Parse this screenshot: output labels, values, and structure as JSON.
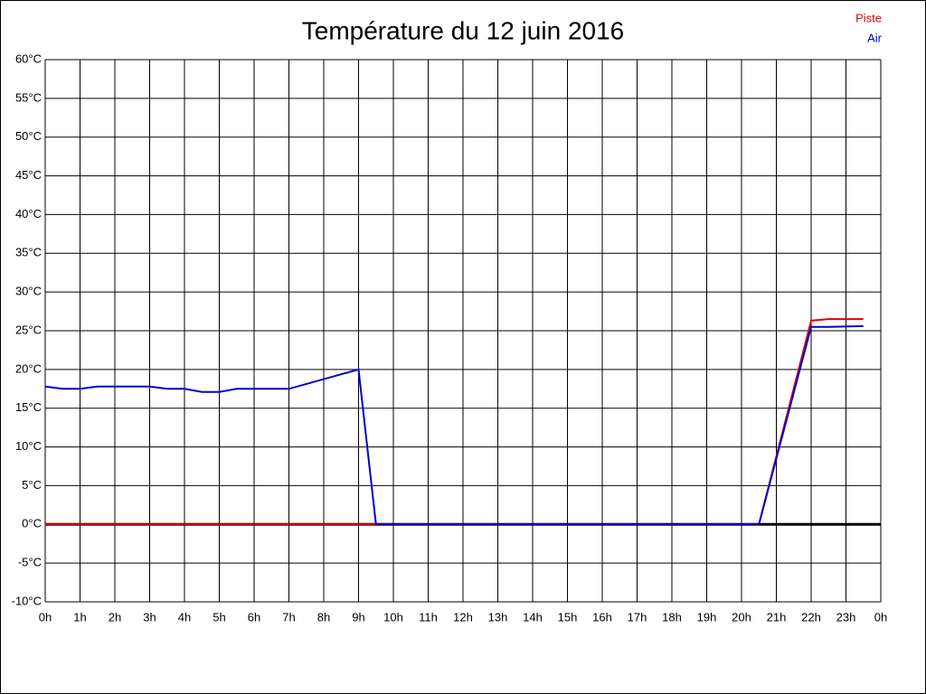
{
  "chart_data": {
    "type": "line",
    "title": "Température du 12 juin 2016",
    "x": [
      0,
      0.5,
      1,
      1.5,
      2,
      3,
      3.5,
      4,
      4.5,
      5,
      5.5,
      6,
      7,
      9,
      9.5,
      20.5,
      22,
      22.5,
      23.5
    ],
    "series": [
      {
        "name": "Piste",
        "color": "#e00000",
        "values": [
          0,
          0,
          0,
          0,
          0,
          0,
          0,
          0,
          0,
          0,
          0,
          0,
          0,
          0,
          0,
          0,
          26.3,
          26.5,
          26.5
        ]
      },
      {
        "name": "Air",
        "color": "#0000cc",
        "values": [
          17.8,
          17.5,
          17.5,
          17.8,
          17.8,
          17.8,
          17.5,
          17.5,
          17.1,
          17.1,
          17.5,
          17.5,
          17.5,
          20,
          0,
          0,
          25.5,
          25.5,
          25.6
        ]
      }
    ],
    "xlim": [
      0,
      24
    ],
    "xticks": [
      {
        "value": 0,
        "label": "0h"
      },
      {
        "value": 1,
        "label": "1h"
      },
      {
        "value": 2,
        "label": "2h"
      },
      {
        "value": 3,
        "label": "3h"
      },
      {
        "value": 4,
        "label": "4h"
      },
      {
        "value": 5,
        "label": "5h"
      },
      {
        "value": 6,
        "label": "6h"
      },
      {
        "value": 7,
        "label": "7h"
      },
      {
        "value": 8,
        "label": "8h"
      },
      {
        "value": 9,
        "label": "9h"
      },
      {
        "value": 10,
        "label": "10h"
      },
      {
        "value": 11,
        "label": "11h"
      },
      {
        "value": 12,
        "label": "12h"
      },
      {
        "value": 13,
        "label": "13h"
      },
      {
        "value": 14,
        "label": "14h"
      },
      {
        "value": 15,
        "label": "15h"
      },
      {
        "value": 16,
        "label": "16h"
      },
      {
        "value": 17,
        "label": "17h"
      },
      {
        "value": 18,
        "label": "18h"
      },
      {
        "value": 19,
        "label": "19h"
      },
      {
        "value": 20,
        "label": "20h"
      },
      {
        "value": 21,
        "label": "21h"
      },
      {
        "value": 22,
        "label": "22h"
      },
      {
        "value": 23,
        "label": "23h"
      },
      {
        "value": 24,
        "label": "0h"
      }
    ],
    "ylim": [
      -10,
      60
    ],
    "yticks": [
      {
        "value": -10,
        "label": "-10°C"
      },
      {
        "value": -5,
        "label": "-5°C"
      },
      {
        "value": 0,
        "label": "0°C"
      },
      {
        "value": 5,
        "label": "5°C"
      },
      {
        "value": 10,
        "label": "10°C"
      },
      {
        "value": 15,
        "label": "15°C"
      },
      {
        "value": 20,
        "label": "20°C"
      },
      {
        "value": 25,
        "label": "25°C"
      },
      {
        "value": 30,
        "label": "30°C"
      },
      {
        "value": 35,
        "label": "35°C"
      },
      {
        "value": 40,
        "label": "40°C"
      },
      {
        "value": 45,
        "label": "45°C"
      },
      {
        "value": 50,
        "label": "50°C"
      },
      {
        "value": 55,
        "label": "55°C"
      },
      {
        "value": 60,
        "label": "60°C"
      }
    ],
    "grid": true,
    "legend": "top-right"
  }
}
